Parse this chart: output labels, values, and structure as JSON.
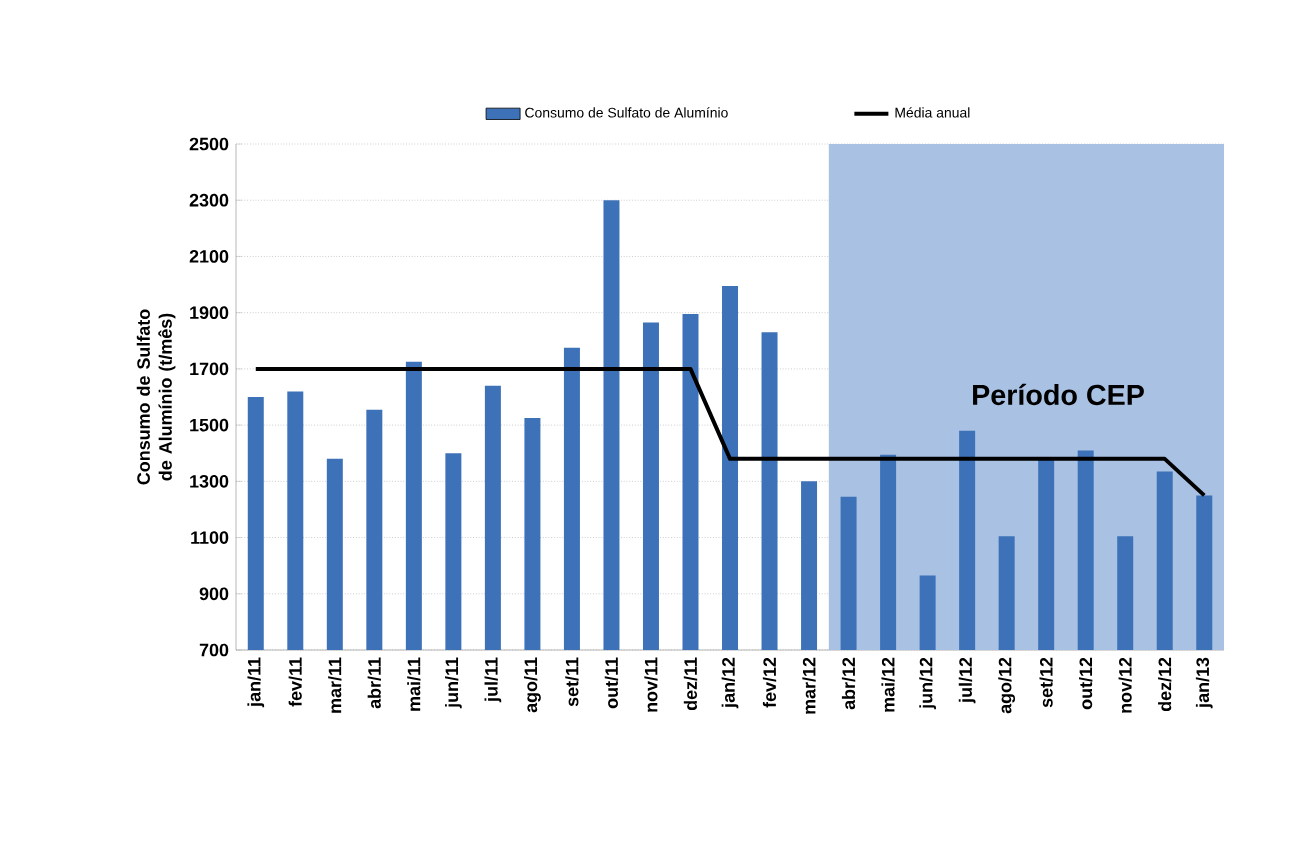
{
  "chart_data": {
    "type": "bar",
    "ylabel": "Consumo de Sulfato de Alumínio (t/mês)",
    "categories": [
      "jan/11",
      "fev/11",
      "mar/11",
      "abr/11",
      "mai/11",
      "jun/11",
      "jul/11",
      "ago/11",
      "set/11",
      "out/11",
      "nov/11",
      "dez/11",
      "jan/12",
      "fev/12",
      "mar/12",
      "abr/12",
      "mai/12",
      "jun/12",
      "jul/12",
      "ago/12",
      "set/12",
      "out/12",
      "nov/12",
      "dez/12",
      "jan/13"
    ],
    "series": [
      {
        "name": "Consumo de Sulfato de Alumínio",
        "color": "#3d72b8",
        "values": [
          1600,
          1620,
          1380,
          1555,
          1725,
          1400,
          1640,
          1525,
          1775,
          2300,
          1865,
          1895,
          1995,
          1830,
          1300,
          1245,
          1395,
          965,
          1480,
          1105,
          1380,
          1410,
          1105,
          1335,
          1250
        ]
      },
      {
        "name": "Média anual",
        "type": "line",
        "color": "#000000",
        "values": [
          1700,
          1700,
          1700,
          1700,
          1700,
          1700,
          1700,
          1700,
          1700,
          1700,
          1700,
          1700,
          1380,
          1380,
          1380,
          1380,
          1380,
          1380,
          1380,
          1380,
          1380,
          1380,
          1380,
          1380,
          1250
        ]
      }
    ],
    "ylim": [
      700,
      2500
    ],
    "yticks": [
      700,
      900,
      1100,
      1300,
      1500,
      1700,
      1900,
      2100,
      2300,
      2500
    ],
    "grid": "y",
    "legend": "top",
    "marker": "none",
    "line_style": "solid",
    "bands": [
      {
        "axis": "x",
        "from": "abr/12",
        "to": "jan/13",
        "label": "Período CEP",
        "color": "#a9c1e3"
      }
    ]
  }
}
